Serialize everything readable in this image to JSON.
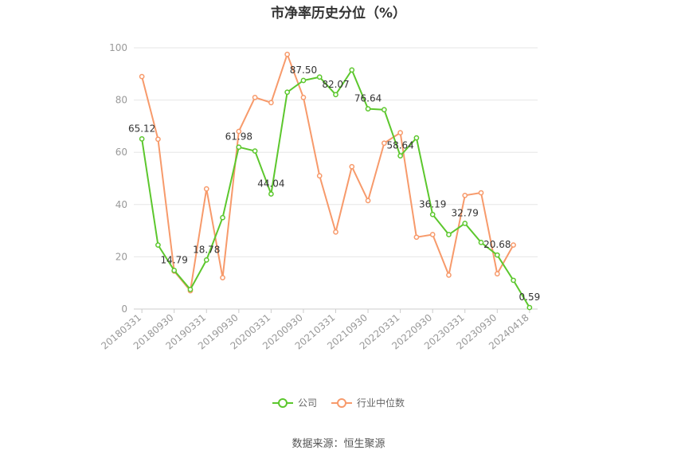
{
  "chart_data": {
    "type": "line",
    "title": "市净率历史分位（%）",
    "ylim": [
      0,
      100
    ],
    "yticks": [
      0,
      20,
      40,
      60,
      80,
      100
    ],
    "x_tick_labels": [
      "20180331",
      "20180930",
      "20190331",
      "20190930",
      "20200331",
      "20200930",
      "20210331",
      "20210930",
      "20220331",
      "20220930",
      "20230331",
      "20230930",
      "20240418"
    ],
    "x": [
      "20180331",
      "20180630",
      "20180930",
      "20181231",
      "20190331",
      "20190630",
      "20190930",
      "20191231",
      "20200331",
      "20200630",
      "20200930",
      "20201231",
      "20210331",
      "20210630",
      "20210930",
      "20211231",
      "20220331",
      "20220630",
      "20220930",
      "20221231",
      "20230331",
      "20230630",
      "20230930",
      "20231231",
      "20240418"
    ],
    "series": [
      {
        "name": "公司",
        "color": "#5cc72d",
        "values": [
          65.12,
          24.5,
          14.79,
          7.5,
          18.78,
          35.0,
          61.98,
          60.5,
          44.04,
          83.0,
          87.5,
          88.8,
          82.07,
          91.5,
          76.64,
          76.3,
          58.64,
          65.5,
          36.19,
          28.5,
          32.79,
          25.5,
          20.68,
          11.0,
          0.59
        ],
        "labels": {
          "0": "65.12",
          "2": "14.79",
          "4": "18.78",
          "6": "61.98",
          "8": "44.04",
          "10": "87.50",
          "12": "82.07",
          "14": "76.64",
          "16": "58.64",
          "18": "36.19",
          "20": "32.79",
          "22": "20.68",
          "24": "0.59"
        }
      },
      {
        "name": "行业中位数",
        "color": "#f79a6b",
        "values": [
          89.0,
          65.0,
          14.5,
          7.0,
          46.0,
          12.0,
          68.0,
          81.0,
          79.0,
          97.5,
          81.0,
          51.0,
          29.5,
          54.5,
          41.5,
          63.5,
          67.5,
          27.5,
          28.5,
          13.0,
          43.5,
          44.5,
          13.5,
          24.5,
          null
        ]
      }
    ],
    "legend_position": "bottom",
    "grid": true,
    "source": "数据来源：恒生聚源"
  }
}
